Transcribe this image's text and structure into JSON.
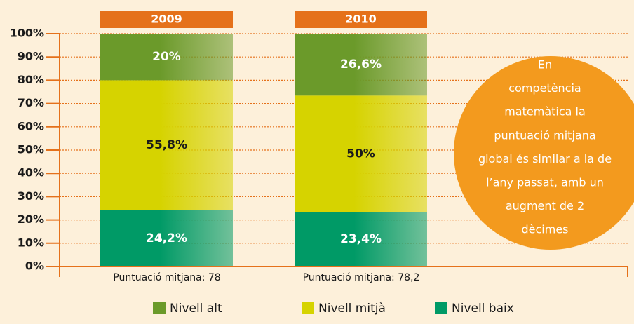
{
  "chart_data": {
    "type": "stacked_bar",
    "categories": [
      "2009",
      "2010"
    ],
    "bar_notes": [
      "Puntuació mitjana: 78",
      "Puntuació mitjana: 78,2"
    ],
    "series": [
      {
        "name": "Nivell baix",
        "color": "#009a66",
        "label_color": "#ffffff",
        "values": [
          24.2,
          23.4
        ],
        "value_labels": [
          "24,2%",
          "23,4%"
        ]
      },
      {
        "name": "Nivell mitjà",
        "color": "#d6d300",
        "label_color": "#1a1a1a",
        "values": [
          55.8,
          50
        ],
        "value_labels": [
          "55,8%",
          "50%"
        ]
      },
      {
        "name": "Nivell alt",
        "color": "#6b9a2a",
        "label_color": "#ffffff",
        "values": [
          20,
          26.6
        ],
        "value_labels": [
          "20%",
          "26,6%"
        ]
      }
    ],
    "ylim": [
      0,
      100
    ],
    "yticks": [
      {
        "value": 0,
        "label": "0%"
      },
      {
        "value": 10,
        "label": "10%"
      },
      {
        "value": 20,
        "label": "20%"
      },
      {
        "value": 30,
        "label": "30%"
      },
      {
        "value": 40,
        "label": "40%"
      },
      {
        "value": 50,
        "label": "50%"
      },
      {
        "value": 60,
        "label": "60%"
      },
      {
        "value": 70,
        "label": "70%"
      },
      {
        "value": 80,
        "label": "80%"
      },
      {
        "value": 90,
        "label": "90%"
      },
      {
        "value": 100,
        "label": "100%"
      }
    ],
    "grid": true,
    "annotation": [
      "En",
      "competència",
      "matemàtica la",
      "puntuació mitjana",
      "global és similar a la de",
      "l’any passat, amb un",
      "augment de 2",
      "dècimes"
    ]
  }
}
